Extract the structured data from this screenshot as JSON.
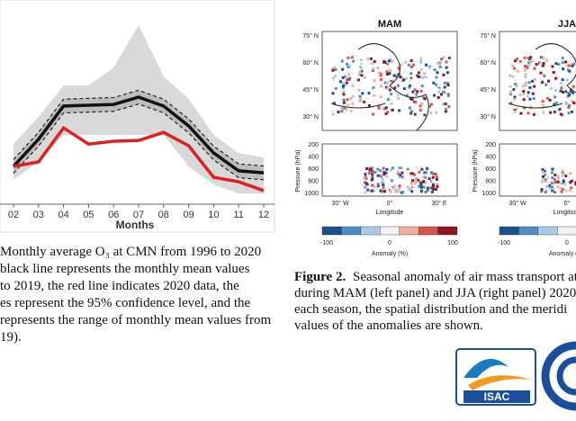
{
  "figure1": {
    "chart": {
      "type": "line",
      "x_label": "Months",
      "categories": [
        "02",
        "03",
        "04",
        "05",
        "06",
        "07",
        "08",
        "09",
        "10",
        "11",
        "12"
      ],
      "ylim": [
        0,
        50
      ],
      "range_upper": [
        14.4,
        21.1,
        28.9,
        28.9,
        33.3,
        43.8,
        31.1,
        25.6,
        16.7,
        12.2,
        11.1
      ],
      "range_lower": [
        5.6,
        10,
        16.7,
        16.7,
        16.7,
        16.7,
        16.7,
        8.9,
        4.4,
        2.2,
        2.2
      ],
      "ci_upper": [
        10.6,
        17.3,
        25.5,
        25.7,
        25.9,
        27.7,
        25.5,
        20.6,
        13.9,
        9.5,
        9
      ],
      "ci_lower": [
        7.2,
        13.9,
        22.1,
        22.3,
        22.5,
        24.3,
        22.1,
        17.2,
        10.5,
        6.1,
        5.6
      ],
      "series": [
        {
          "color": "#111111",
          "values": [
            8.9,
            15.6,
            23.8,
            24,
            24.2,
            26,
            23.8,
            18.9,
            12.2,
            7.8,
            7.3
          ]
        },
        {
          "color": "#e02020",
          "values": [
            8.9,
            10,
            18.4,
            14.4,
            15.1,
            15.3,
            17.3,
            14,
            6.2,
            5.1,
            2.9
          ]
        }
      ]
    },
    "caption": [
      "Monthly average O₃ at CMN from 1996 to 2020",
      "black line represents the monthly mean values",
      "to 2019, the red line indicates 2020 data, the",
      "es represent the 95% confidence level, and the",
      "represents the range of monthly mean values from",
      "19)."
    ]
  },
  "figure2": {
    "panels": [
      {
        "title": "MAM"
      },
      {
        "title": "JJA"
      }
    ],
    "lat_ticks": [
      "75° N",
      "60° N",
      "45° N",
      "30° N"
    ],
    "pressure_label": "Pressure (hPa)",
    "pressure_ticks": [
      "200",
      "400",
      "600",
      "800",
      "1000"
    ],
    "lon_ticks": [
      "30° W",
      "0°",
      "30° E"
    ],
    "lon_label": "Longitude",
    "colorbar_ticks": [
      "-100",
      "0",
      "100"
    ],
    "colorbar_label": "Anomaly (%)",
    "caption_lead": "Figure 2.",
    "caption": [
      "Seasonal anomaly of air mass transport at",
      "during MAM (left panel) and JJA (right panel) 2020",
      "each season, the spatial distribution and the meridi",
      "values of the anomalies are shown."
    ]
  },
  "logo": {
    "text": "ISAC"
  }
}
